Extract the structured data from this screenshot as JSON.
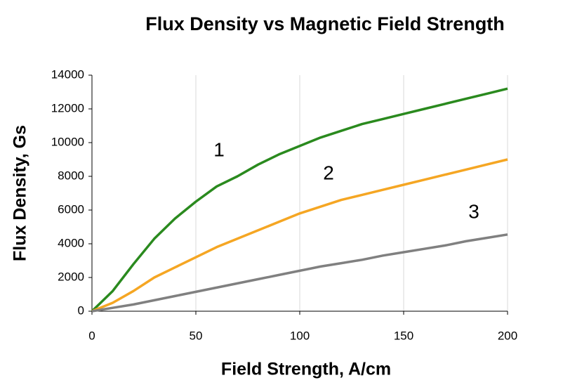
{
  "chart_data": {
    "type": "line",
    "title": "Flux Density vs Magnetic Field Strength",
    "x_label": "Field Strength, A/cm",
    "y_label": "Flux Density, Gs",
    "x": [
      0,
      10,
      20,
      30,
      40,
      50,
      60,
      70,
      80,
      90,
      100,
      110,
      120,
      130,
      140,
      150,
      160,
      170,
      180,
      190,
      200
    ],
    "series": [
      {
        "name": "1",
        "color": "#2a8a1e",
        "values": [
          0,
          1200,
          2800,
          4300,
          5500,
          6500,
          7400,
          8000,
          8700,
          9300,
          9800,
          10300,
          10700,
          11100,
          11400,
          11700,
          12000,
          12300,
          12600,
          12900,
          13200
        ]
      },
      {
        "name": "2",
        "color": "#f5a623",
        "values": [
          0,
          500,
          1200,
          2000,
          2600,
          3200,
          3800,
          4300,
          4800,
          5300,
          5800,
          6200,
          6600,
          6900,
          7200,
          7500,
          7800,
          8100,
          8400,
          8700,
          9000
        ]
      },
      {
        "name": "3",
        "color": "#808080",
        "values": [
          0,
          200,
          400,
          650,
          900,
          1150,
          1400,
          1650,
          1900,
          2150,
          2400,
          2650,
          2850,
          3050,
          3300,
          3500,
          3700,
          3900,
          4150,
          4350,
          4550
        ]
      }
    ],
    "xlim": [
      0,
      200
    ],
    "xticks": [
      0,
      50,
      100,
      150,
      200
    ],
    "ylim": [
      0,
      14000
    ],
    "yticks": [
      0,
      2000,
      4000,
      6000,
      8000,
      10000,
      12000,
      14000
    ],
    "grid": "x"
  }
}
